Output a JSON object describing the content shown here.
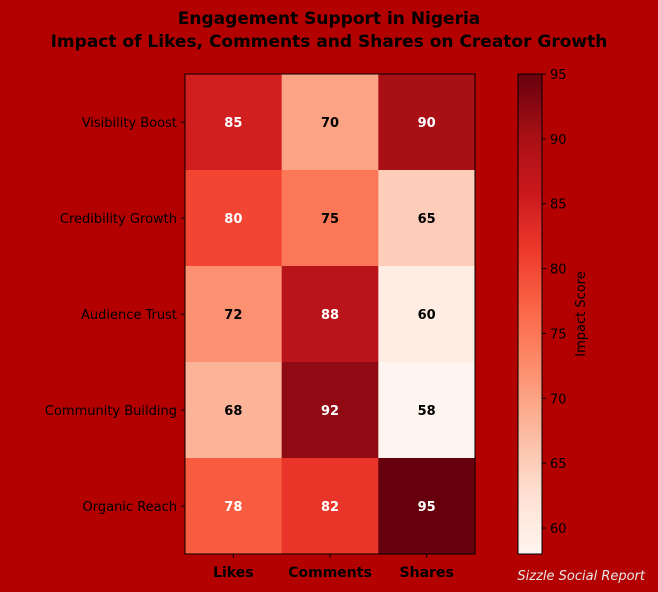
{
  "chart_data": {
    "type": "heatmap",
    "title": "Engagement Support in Nigeria",
    "subtitle": "Impact of Likes, Comments and Shares on Creator Growth",
    "rows": [
      "Visibility Boost",
      "Credibility Growth",
      "Audience Trust",
      "Community Building",
      "Organic Reach"
    ],
    "columns": [
      "Likes",
      "Comments",
      "Shares"
    ],
    "values": [
      [
        85,
        70,
        90
      ],
      [
        80,
        75,
        65
      ],
      [
        72,
        88,
        60
      ],
      [
        68,
        92,
        58
      ],
      [
        78,
        82,
        95
      ]
    ],
    "colorbar": {
      "label": "Impact Score",
      "range": [
        58,
        95
      ],
      "ticks": [
        60,
        65,
        70,
        75,
        80,
        85,
        90,
        95
      ],
      "colormap": "Reds"
    },
    "background_color": "#b30000"
  },
  "footer": "Sizzle Social Report"
}
